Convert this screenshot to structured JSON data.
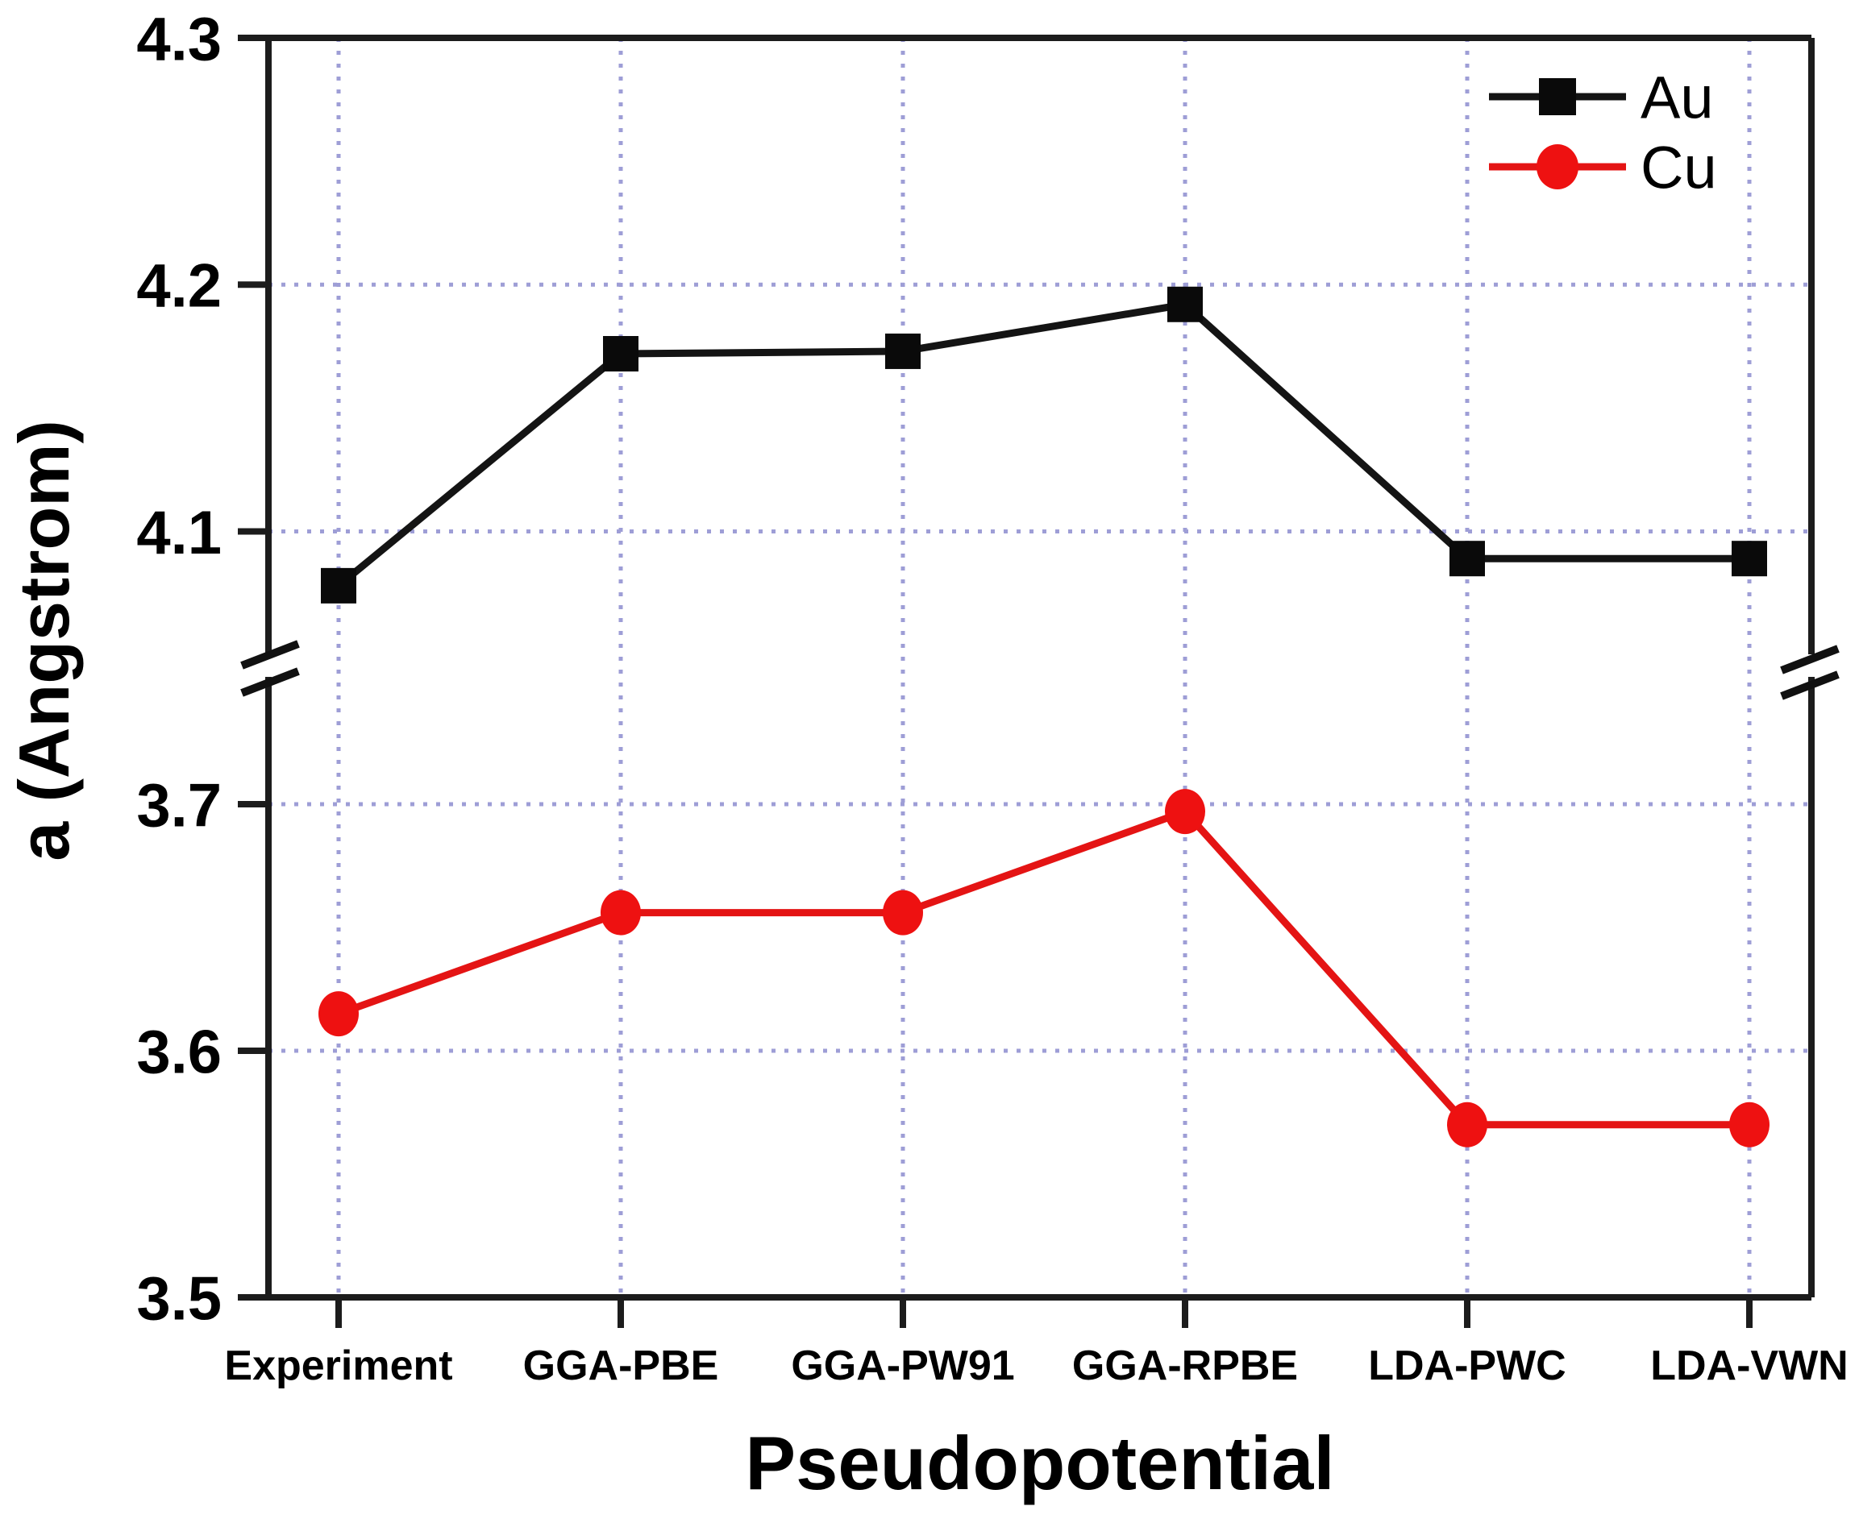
{
  "figure": {
    "background": "#ffffff"
  },
  "chart_data": {
    "type": "line",
    "title": "",
    "xlabel": "Pseudopotential",
    "ylabel": "a (Angstrom)",
    "categories": [
      "Experiment",
      "GGA-PBE",
      "GGA-PW91",
      "GGA-RPBE",
      "LDA-PWC",
      "LDA-VWN"
    ],
    "series": [
      {
        "name": "Au",
        "marker": "square",
        "color": "#0a0a0a",
        "line_color": "#141414",
        "values": [
          4.078,
          4.172,
          4.173,
          4.192,
          4.089,
          4.089
        ]
      },
      {
        "name": "Cu",
        "marker": "circle",
        "color": "#ee1111",
        "line_color": "#e41414",
        "values": [
          3.615,
          3.656,
          3.656,
          3.697,
          3.57,
          3.57
        ]
      }
    ],
    "y_axis": {
      "broken": true,
      "sections": [
        {
          "position": "top",
          "range": [
            4.05,
            4.3
          ],
          "ticks": [
            4.3,
            4.2,
            4.1
          ]
        },
        {
          "position": "bottom",
          "range": [
            3.5,
            3.752
          ],
          "ticks": [
            3.7,
            3.6,
            3.5
          ]
        }
      ],
      "h_gridline_values": [
        4.2,
        4.1,
        3.7,
        3.6
      ]
    },
    "grid": true,
    "gridline_style": "dotted",
    "legend": {
      "position": "top-right",
      "entries": [
        "Au",
        "Cu"
      ]
    },
    "colors": {
      "grid": "#9e9ed6",
      "axis": "#1c1c1c",
      "break_mark": "#111111",
      "tick_text": "#000000"
    }
  }
}
